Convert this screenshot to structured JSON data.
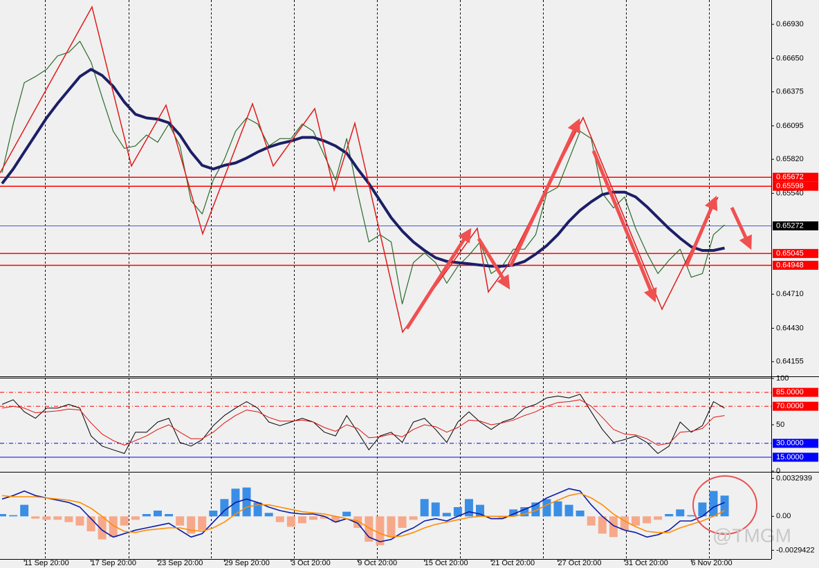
{
  "chart_data": [
    {
      "type": "line",
      "ylim": [
        0.6404,
        0.6713
      ],
      "yticks": [
        {
          "value": 0.6693,
          "label": "0.66930"
        },
        {
          "value": 0.6665,
          "label": "0.66650"
        },
        {
          "value": 0.66375,
          "label": "0.66375"
        },
        {
          "value": 0.66095,
          "label": "0.66095"
        },
        {
          "value": 0.6582,
          "label": "0.65820"
        },
        {
          "value": 0.6554,
          "label": "0.65540"
        },
        {
          "value": 0.6471,
          "label": "0.64710"
        },
        {
          "value": 0.6443,
          "label": "0.64430"
        },
        {
          "value": 0.64155,
          "label": "0.64155"
        }
      ],
      "levels": [
        {
          "value": 0.65672,
          "label": "0.65672",
          "color": "#ff0000",
          "box_color": "#ff0000",
          "style": "solid"
        },
        {
          "value": 0.65598,
          "label": "0.65598",
          "color": "#ff0000",
          "box_color": "#ff0000",
          "style": "solid"
        },
        {
          "value": 0.65272,
          "label": "0.65272",
          "color": "#3c5cd8",
          "box_color": "#000000",
          "style": "solid"
        },
        {
          "value": 0.65045,
          "label": "0.65045",
          "color": "#ff0000",
          "box_color": "#ff0000",
          "style": "solid"
        },
        {
          "value": 0.64948,
          "label": "0.64948",
          "color": "#ff0000",
          "box_color": "#ff0000",
          "style": "solid"
        }
      ],
      "series": [
        {
          "color": "#2a6a2a",
          "width": 1.2,
          "values": [
            0.6571,
            0.6611,
            0.6645,
            0.665,
            0.6656,
            0.6667,
            0.667,
            0.6679,
            0.6662,
            0.6633,
            0.6605,
            0.6591,
            0.6593,
            0.6602,
            0.6596,
            0.6611,
            0.6593,
            0.6548,
            0.6537,
            0.6565,
            0.6582,
            0.6605,
            0.6616,
            0.6611,
            0.6593,
            0.6599,
            0.6599,
            0.6611,
            0.6605,
            0.6585,
            0.6565,
            0.6599,
            0.6554,
            0.6514,
            0.652,
            0.6514,
            0.6463,
            0.6497,
            0.6505,
            0.6497,
            0.648,
            0.6494,
            0.6503,
            0.6514,
            0.6488,
            0.6494,
            0.6508,
            0.6508,
            0.652,
            0.6554,
            0.6559,
            0.6582,
            0.6605,
            0.6599,
            0.6554,
            0.6542,
            0.6551,
            0.6525,
            0.6505,
            0.6488,
            0.6499,
            0.6508,
            0.6485,
            0.6488,
            0.652,
            0.6528
          ]
        },
        {
          "color": "#1c1f66",
          "width": 4,
          "values": [
            0.6562,
            0.6574,
            0.6588,
            0.6602,
            0.6616,
            0.6628,
            0.6639,
            0.665,
            0.6656,
            0.6651,
            0.6642,
            0.6629,
            0.6619,
            0.6616,
            0.6615,
            0.6612,
            0.6602,
            0.6588,
            0.6577,
            0.6574,
            0.6577,
            0.6579,
            0.6583,
            0.6588,
            0.6592,
            0.6595,
            0.6597,
            0.66,
            0.66,
            0.6597,
            0.6593,
            0.6587,
            0.6574,
            0.6562,
            0.6548,
            0.6534,
            0.6523,
            0.6514,
            0.6507,
            0.6501,
            0.6498,
            0.6497,
            0.6496,
            0.6495,
            0.6494,
            0.6494,
            0.6495,
            0.6498,
            0.6504,
            0.6511,
            0.652,
            0.6531,
            0.654,
            0.6547,
            0.6553,
            0.6555,
            0.6555,
            0.6551,
            0.6543,
            0.6534,
            0.6525,
            0.6517,
            0.651,
            0.6507,
            0.6507,
            0.6509
          ]
        }
      ]
    },
    {
      "type": "line",
      "ylim": [
        0,
        100
      ],
      "yticks": [
        100,
        50,
        0
      ],
      "levels": [
        {
          "value": 85,
          "label": "85.0000",
          "color": "#ff0000",
          "box_color": "#ff0000",
          "style": "dashed"
        },
        {
          "value": 70,
          "label": "70.0000",
          "color": "#ff0000",
          "box_color": "#ff0000",
          "style": "dashed"
        },
        {
          "value": 30,
          "label": "30.0000",
          "color": "#0000ff",
          "box_color": "#0000ff",
          "style": "dashed"
        },
        {
          "value": 15,
          "label": "15.0000",
          "color": "#0000ff",
          "box_color": "#0000ff",
          "style": "solid"
        }
      ],
      "series": [
        {
          "color": "#000000",
          "width": 1,
          "values": [
            72,
            77,
            64,
            57,
            68,
            68,
            72,
            68,
            38,
            27,
            23,
            19,
            42,
            42,
            53,
            57,
            31,
            27,
            34,
            49,
            60,
            68,
            75,
            68,
            53,
            49,
            53,
            57,
            53,
            42,
            38,
            60,
            42,
            23,
            38,
            42,
            31,
            53,
            57,
            45,
            31,
            53,
            64,
            53,
            45,
            53,
            57,
            68,
            72,
            79,
            81,
            79,
            83,
            64,
            45,
            31,
            34,
            38,
            31,
            19,
            27,
            53,
            42,
            49,
            75,
            68
          ]
        },
        {
          "color": "#e01010",
          "width": 1,
          "values": [
            68,
            70,
            68,
            63,
            64,
            65,
            67,
            66,
            52,
            40,
            33,
            28,
            33,
            38,
            45,
            50,
            42,
            35,
            35,
            42,
            52,
            60,
            66,
            64,
            58,
            54,
            54,
            55,
            53,
            47,
            43,
            50,
            46,
            36,
            37,
            40,
            37,
            45,
            50,
            48,
            42,
            47,
            55,
            54,
            50,
            52,
            55,
            60,
            64,
            70,
            74,
            75,
            77,
            70,
            58,
            45,
            40,
            39,
            35,
            28,
            30,
            42,
            43,
            46,
            58,
            60
          ]
        }
      ]
    },
    {
      "type": "bar",
      "categories": [
        null,
        null,
        "11 Sep 20:00",
        null,
        null,
        null,
        null,
        null,
        "17 Sep 20:00",
        null,
        null,
        null,
        null,
        null,
        "23 Sep 20:00",
        null,
        null,
        null,
        null,
        null,
        "29 Sep 20:00",
        null,
        null,
        null,
        null,
        null,
        "3 Oct 20:00",
        null,
        null,
        null,
        null,
        null,
        "9 Oct 20:00",
        null,
        null,
        null,
        null,
        null,
        "15 Oct 20:00",
        null,
        null,
        null,
        null,
        null,
        "21 Oct 20:00",
        null,
        null,
        null,
        null,
        null,
        "27 Oct 20:00",
        null,
        null,
        null,
        null,
        null,
        "31 Oct 20:00",
        null,
        null,
        null,
        null,
        null,
        "6 Nov 20:00",
        null,
        null,
        null
      ],
      "ylim": [
        -0.0037,
        0.0038
      ],
      "yticks": [
        0.0032939,
        {
          "value": 0,
          "label": "0.00"
        },
        -0.0029422
      ],
      "values": [
        0.0002,
        0.0001,
        0.001,
        -0.0002,
        -0.0003,
        -0.0003,
        -0.0005,
        -0.0008,
        -0.0013,
        -0.002,
        -0.0018,
        -0.0008,
        -0.0003,
        0.0002,
        0.0005,
        0.0002,
        -0.0008,
        -0.0015,
        -0.0012,
        0.0005,
        0.0015,
        0.0024,
        0.0025,
        0.0012,
        0.0003,
        -0.0005,
        -0.0009,
        -0.0006,
        -0.0003,
        -0.0002,
        -0.0005,
        0.0004,
        -0.001,
        -0.0022,
        -0.0025,
        -0.0018,
        -0.001,
        -0.0003,
        0.0015,
        0.0012,
        0.0003,
        0.0008,
        0.0015,
        0.001,
        0,
        -0.0002,
        0.0006,
        0.0008,
        0.0012,
        0.0015,
        0.0013,
        0.001,
        0.0005,
        -0.0008,
        -0.0015,
        -0.0018,
        -0.0012,
        -0.0008,
        -0.0006,
        -0.0003,
        0.0002,
        0.0006,
        0.0001,
        0.0012,
        0.0022,
        0.0018
      ],
      "colors": {
        "positive": "#3a8ee6",
        "negative": "#f6a98a"
      },
      "series": [
        {
          "color": "#0a1aa8",
          "width": 1.6,
          "values": [
            0.0015,
            0.0018,
            0.0022,
            0.0018,
            0.0016,
            0.0014,
            0.0012,
            0.0008,
            -0.0002,
            -0.0012,
            -0.0018,
            -0.0015,
            -0.0012,
            -0.001,
            -0.0008,
            -0.0006,
            -0.0012,
            -0.0018,
            -0.0015,
            -0.0005,
            0.0005,
            0.0012,
            0.0015,
            0.0012,
            0.0008,
            0.0005,
            0.0003,
            0.0002,
            0.0002,
            0,
            -0.0005,
            -0.0002,
            -0.0006,
            -0.0018,
            -0.0022,
            -0.002,
            -0.0014,
            -0.001,
            -0.0004,
            -0.0002,
            -0.0004,
            0,
            0.0004,
            0.0002,
            -0.0002,
            -0.0002,
            0.0002,
            0.0006,
            0.001,
            0.0016,
            0.002,
            0.0024,
            0.0022,
            0.001,
            0,
            -0.0008,
            -0.0012,
            -0.0014,
            -0.0018,
            -0.0016,
            -0.0012,
            -0.0004,
            -0.0004,
            0,
            0.0008,
            0.0012
          ]
        },
        {
          "color": "#ff8c00",
          "width": 1.6,
          "values": [
            0.0018,
            0.0017,
            0.0017,
            0.0017,
            0.0016,
            0.0015,
            0.0014,
            0.0012,
            0.0007,
            0,
            -0.0008,
            -0.0013,
            -0.0014,
            -0.0012,
            -0.0011,
            -0.001,
            -0.001,
            -0.0012,
            -0.0013,
            -0.001,
            -0.0005,
            0.0002,
            0.0008,
            0.001,
            0.001,
            0.0008,
            0.0006,
            0.0004,
            0.0003,
            0.0002,
            0,
            -0.0002,
            -0.0004,
            -0.001,
            -0.0015,
            -0.0018,
            -0.0017,
            -0.0014,
            -0.001,
            -0.0007,
            -0.0005,
            -0.0003,
            -0.0001,
            0,
            0,
            0,
            0,
            0.0002,
            0.0005,
            0.001,
            0.0014,
            0.0018,
            0.002,
            0.0016,
            0.001,
            0.0002,
            -0.0004,
            -0.0009,
            -0.0013,
            -0.0014,
            -0.0014,
            -0.001,
            -0.0007,
            -0.0004,
            0,
            0.0005
          ]
        }
      ]
    }
  ],
  "watermark": "@TMGM"
}
